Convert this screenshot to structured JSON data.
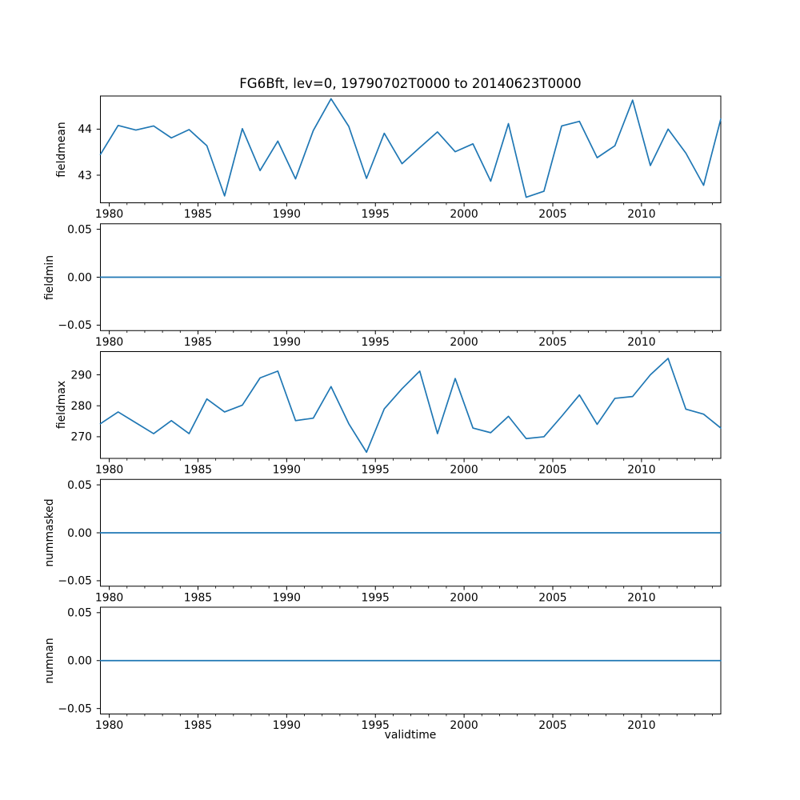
{
  "figure": {
    "title": "FG6Bft, lev=0, 19790702T0000 to 20140623T0000",
    "xlabel": "validtime",
    "line_color": "#1f77b4",
    "axis_color": "#000000",
    "text_color": "#000000",
    "background_color": "#ffffff"
  },
  "chart_data": {
    "type": "line",
    "title": "FG6Bft, lev=0, 19790702T0000 to 20140623T0000",
    "xlabel": "validtime",
    "grid": false,
    "legend_position": "none",
    "x": [
      1979.5,
      1980.5,
      1981.5,
      1982.5,
      1983.5,
      1984.5,
      1985.5,
      1986.5,
      1987.5,
      1988.5,
      1989.5,
      1990.5,
      1991.5,
      1992.5,
      1993.5,
      1994.5,
      1995.5,
      1996.5,
      1997.5,
      1998.5,
      1999.5,
      2000.5,
      2001.5,
      2002.5,
      2003.5,
      2004.5,
      2005.5,
      2006.5,
      2007.5,
      2008.5,
      2009.5,
      2010.5,
      2011.5,
      2012.5,
      2013.5,
      2014.47
    ],
    "xlim": [
      1979.5,
      2014.47
    ],
    "xticks": [
      1980,
      1985,
      1990,
      1995,
      2000,
      2005,
      2010
    ],
    "xtick_labels": [
      "1980",
      "1985",
      "1990",
      "1995",
      "2000",
      "2005",
      "2010"
    ],
    "minor_xtick_step": 1,
    "subplots": [
      {
        "ylabel": "fieldmean",
        "values": [
          43.45,
          44.08,
          43.98,
          44.07,
          43.81,
          43.99,
          43.64,
          42.55,
          44.01,
          43.1,
          43.74,
          42.92,
          43.97,
          44.66,
          44.06,
          42.93,
          43.91,
          43.25,
          43.6,
          43.94,
          43.51,
          43.68,
          42.87,
          44.12,
          42.52,
          42.65,
          44.07,
          44.17,
          43.38,
          43.64,
          44.63,
          43.21,
          44.0,
          43.48,
          42.78,
          44.22
        ],
        "ylim": [
          42.4,
          44.72
        ],
        "yticks": [
          43,
          44
        ],
        "ytick_labels": [
          "43",
          "44"
        ]
      },
      {
        "ylabel": "fieldmin",
        "values": [
          0,
          0,
          0,
          0,
          0,
          0,
          0,
          0,
          0,
          0,
          0,
          0,
          0,
          0,
          0,
          0,
          0,
          0,
          0,
          0,
          0,
          0,
          0,
          0,
          0,
          0,
          0,
          0,
          0,
          0,
          0,
          0,
          0,
          0,
          0,
          0
        ],
        "ylim": [
          -0.0557,
          0.0557
        ],
        "yticks": [
          -0.05,
          0.0,
          0.05
        ],
        "ytick_labels": [
          "−0.05",
          "0.00",
          "0.05"
        ]
      },
      {
        "ylabel": "fieldmax",
        "values": [
          274.2,
          278.0,
          274.5,
          271.0,
          275.2,
          271.0,
          282.2,
          278.0,
          280.2,
          289.0,
          291.2,
          275.2,
          276.0,
          286.2,
          274.2,
          265.0,
          279.0,
          285.5,
          291.2,
          271.0,
          288.8,
          272.8,
          271.3,
          276.6,
          269.4,
          270.0,
          276.6,
          283.5,
          274.0,
          282.4,
          283.0,
          290.0,
          295.3,
          278.9,
          277.3,
          272.8
        ],
        "ylim": [
          263.0,
          297.5
        ],
        "yticks": [
          270,
          280,
          290
        ],
        "ytick_labels": [
          "270",
          "280",
          "290"
        ]
      },
      {
        "ylabel": "nummasked",
        "values": [
          0,
          0,
          0,
          0,
          0,
          0,
          0,
          0,
          0,
          0,
          0,
          0,
          0,
          0,
          0,
          0,
          0,
          0,
          0,
          0,
          0,
          0,
          0,
          0,
          0,
          0,
          0,
          0,
          0,
          0,
          0,
          0,
          0,
          0,
          0,
          0
        ],
        "ylim": [
          -0.0557,
          0.0557
        ],
        "yticks": [
          -0.05,
          0.0,
          0.05
        ],
        "ytick_labels": [
          "−0.05",
          "0.00",
          "0.05"
        ]
      },
      {
        "ylabel": "numnan",
        "values": [
          0,
          0,
          0,
          0,
          0,
          0,
          0,
          0,
          0,
          0,
          0,
          0,
          0,
          0,
          0,
          0,
          0,
          0,
          0,
          0,
          0,
          0,
          0,
          0,
          0,
          0,
          0,
          0,
          0,
          0,
          0,
          0,
          0,
          0,
          0,
          0
        ],
        "ylim": [
          -0.0557,
          0.0557
        ],
        "yticks": [
          -0.05,
          0.0,
          0.05
        ],
        "ytick_labels": [
          "−0.05",
          "0.00",
          "0.05"
        ]
      }
    ]
  }
}
